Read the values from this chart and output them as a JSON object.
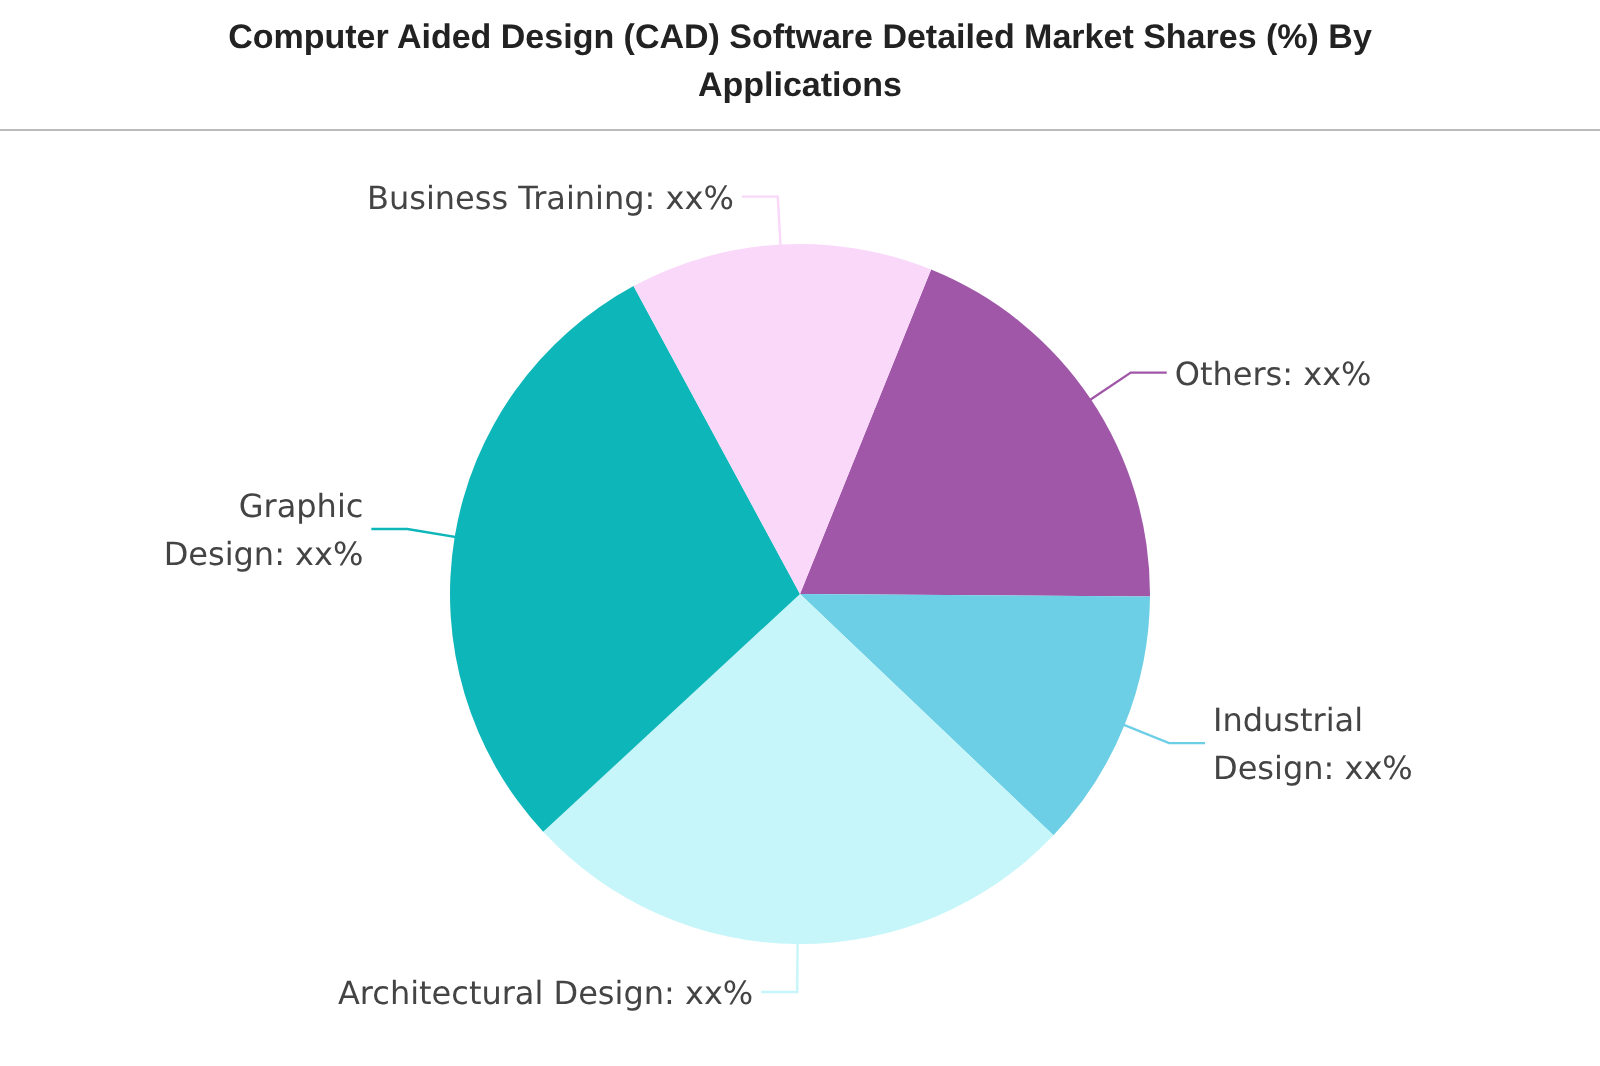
{
  "chart_data": {
    "type": "pie",
    "title": "Computer Aided Design (CAD) Software Detailed Market Shares (%) By Applications",
    "categories": [
      "Others",
      "Industrial Design",
      "Architectural Design",
      "Graphic Design",
      "Business Training"
    ],
    "values": [
      19,
      12,
      26,
      29,
      14
    ],
    "colors": [
      "#a057a8",
      "#6dcfe6",
      "#c6f6f9",
      "#0db6b9",
      "#fad8fa"
    ],
    "value_labels": [
      "xx%",
      "xx%",
      "xx%",
      "xx%",
      "xx%"
    ]
  }
}
